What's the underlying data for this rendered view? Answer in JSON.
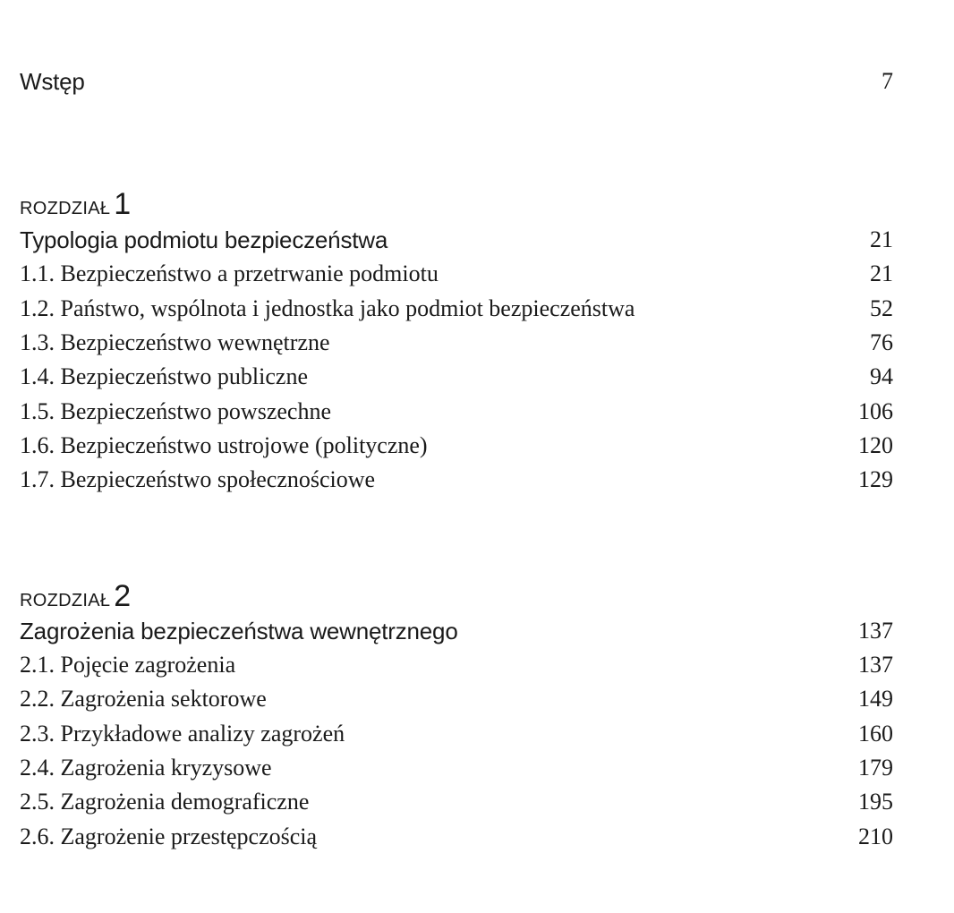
{
  "intro": {
    "title": "Wstęp",
    "page": "7"
  },
  "chapters": [
    {
      "label": "ROZDZIAŁ",
      "number": "1",
      "title": "Typologia podmiotu bezpieczeństwa",
      "page": "21",
      "sections": [
        {
          "title": "1.1. Bezpieczeństwo a przetrwanie podmiotu",
          "page": "21"
        },
        {
          "title": "1.2. Państwo, wspólnota i jednostka jako podmiot bezpieczeństwa",
          "page": "52"
        },
        {
          "title": "1.3. Bezpieczeństwo wewnętrzne",
          "page": "76"
        },
        {
          "title": "1.4. Bezpieczeństwo publiczne",
          "page": "94"
        },
        {
          "title": "1.5. Bezpieczeństwo powszechne",
          "page": "106"
        },
        {
          "title": "1.6. Bezpieczeństwo ustrojowe (polityczne)",
          "page": "120"
        },
        {
          "title": "1.7. Bezpieczeństwo społecznościowe",
          "page": "129"
        }
      ]
    },
    {
      "label": "ROZDZIAŁ",
      "number": "2",
      "title": "Zagrożenia bezpieczeństwa wewnętrznego",
      "page": "137",
      "sections": [
        {
          "title": "2.1. Pojęcie zagrożenia",
          "page": "137"
        },
        {
          "title": "2.2. Zagrożenia sektorowe",
          "page": "149"
        },
        {
          "title": "2.3. Przykładowe analizy zagrożeń",
          "page": "160"
        },
        {
          "title": "2.4. Zagrożenia kryzysowe",
          "page": "179"
        },
        {
          "title": "2.5. Zagrożenia demograficzne",
          "page": "195"
        },
        {
          "title": "2.6. Zagrożenie przestępczością",
          "page": "210"
        }
      ]
    }
  ]
}
